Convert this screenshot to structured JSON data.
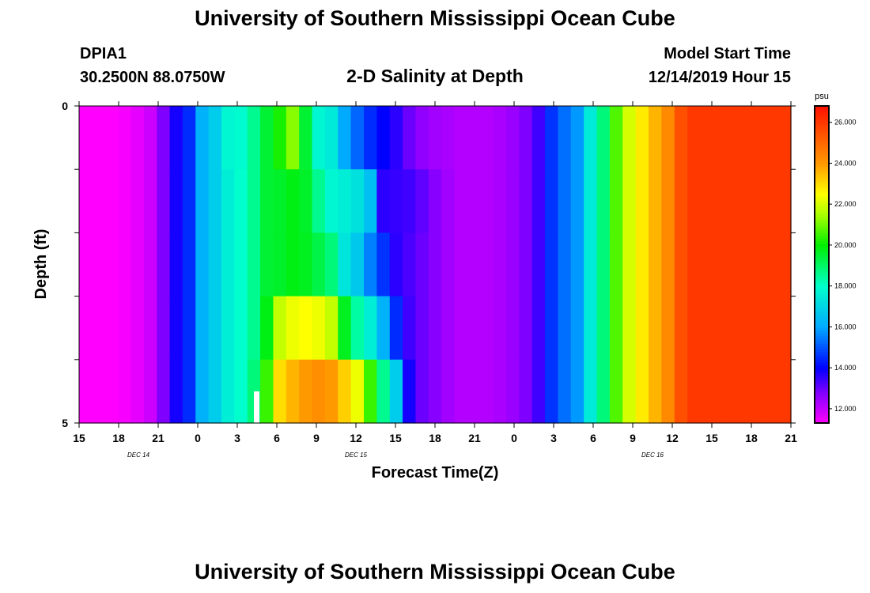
{
  "header": {
    "title": "University of Southern Mississippi Ocean Cube",
    "station": "DPIA1",
    "coords": "30.2500N 88.0750W",
    "subtitle": "2-D Salinity at Depth",
    "model_label": "Model Start Time",
    "model_time": "12/14/2019 Hour 15"
  },
  "footer": {
    "title": "University of Southern Mississippi Ocean Cube"
  },
  "chart_data": {
    "type": "heatmap",
    "title": "2-D Salinity at Depth",
    "xlabel": "Forecast Time(Z)",
    "ylabel": "Depth (ft)",
    "x_tick_labels": [
      "15",
      "18",
      "21",
      "0",
      "3",
      "6",
      "9",
      "12",
      "15",
      "18",
      "21",
      "0",
      "3",
      "6",
      "9",
      "12",
      "15",
      "18",
      "21"
    ],
    "date_labels": [
      {
        "label": "DEC 14",
        "tick": 1.5
      },
      {
        "label": "DEC 15",
        "tick": 7
      },
      {
        "label": "DEC 16",
        "tick": 14.5
      }
    ],
    "y_tick_labels": [
      "0",
      "5"
    ],
    "ylim": [
      0,
      5
    ],
    "x_hours_range": [
      0,
      54
    ],
    "colorbar": {
      "unit": "psu",
      "min": 11.3,
      "max": 26.8,
      "tick_labels": [
        "12.000",
        "14.000",
        "16.000",
        "18.000",
        "20.000",
        "22.000",
        "24.000",
        "26.000"
      ],
      "stops": [
        {
          "v": 11.3,
          "c": "#ff00ff"
        },
        {
          "v": 12.8,
          "c": "#8000ff"
        },
        {
          "v": 14.0,
          "c": "#0000ff"
        },
        {
          "v": 16.0,
          "c": "#00aaff"
        },
        {
          "v": 18.0,
          "c": "#00ffcc"
        },
        {
          "v": 20.0,
          "c": "#00ee00"
        },
        {
          "v": 21.5,
          "c": "#aaff00"
        },
        {
          "v": 22.5,
          "c": "#ffff00"
        },
        {
          "v": 24.0,
          "c": "#ff9900"
        },
        {
          "v": 26.8,
          "c": "#ff1100"
        }
      ]
    },
    "depths_ft": [
      0.5,
      1.5,
      2.5,
      3.5,
      4.5
    ],
    "hours": [
      0,
      1,
      2,
      3,
      4,
      5,
      6,
      7,
      8,
      9,
      10,
      11,
      12,
      13,
      14,
      15,
      16,
      17,
      18,
      19,
      20,
      21,
      22,
      23,
      24,
      25,
      26,
      27,
      28,
      29,
      30,
      31,
      32,
      33,
      34,
      35,
      36,
      37,
      38,
      39,
      40,
      41,
      42,
      43,
      44,
      45,
      46,
      47,
      48,
      49,
      50,
      51,
      52,
      53,
      54
    ],
    "salinity_psu": [
      [
        11.3,
        11.3,
        11.3,
        11.4,
        11.6,
        11.9,
        12.8,
        13.8,
        14.5,
        16.2,
        16.8,
        17.8,
        17.9,
        18.6,
        19.5,
        20.2,
        21.2,
        19.5,
        17.8,
        17.5,
        16.0,
        15.2,
        14.5,
        14.0,
        13.6,
        13.0,
        12.6,
        12.4,
        12.3,
        12.2,
        12.2,
        12.2,
        12.3,
        12.5,
        12.8,
        13.4,
        14.6,
        15.3,
        15.8,
        17.5,
        18.8,
        20.7,
        22.0,
        22.8,
        23.6,
        24.3,
        25.5,
        26.0,
        26.0,
        26.0,
        26.0,
        26.0,
        26.0,
        26.0,
        26.0
      ],
      [
        11.3,
        11.3,
        11.3,
        11.4,
        11.6,
        11.9,
        12.8,
        13.8,
        14.5,
        16.2,
        16.8,
        17.6,
        18.0,
        18.6,
        19.5,
        19.6,
        19.8,
        19.6,
        18.6,
        17.8,
        17.6,
        17.3,
        16.5,
        13.6,
        13.5,
        13.4,
        13.1,
        12.7,
        12.4,
        12.2,
        12.2,
        12.2,
        12.3,
        12.5,
        12.8,
        13.4,
        14.6,
        15.3,
        15.8,
        17.5,
        18.8,
        20.7,
        22.0,
        22.8,
        23.6,
        24.3,
        25.5,
        26.0,
        26.0,
        26.0,
        26.0,
        26.0,
        26.0,
        26.0,
        26.0
      ],
      [
        11.3,
        11.3,
        11.3,
        11.4,
        11.6,
        11.9,
        12.8,
        13.8,
        14.5,
        16.2,
        16.8,
        17.6,
        18.0,
        18.6,
        19.5,
        19.6,
        19.8,
        19.7,
        19.3,
        18.8,
        17.4,
        16.7,
        15.5,
        14.6,
        13.6,
        13.3,
        13.0,
        12.7,
        12.4,
        12.2,
        12.2,
        12.2,
        12.3,
        12.5,
        12.8,
        13.4,
        14.6,
        15.3,
        15.8,
        17.5,
        18.8,
        20.7,
        22.0,
        22.8,
        23.6,
        24.3,
        25.5,
        26.0,
        26.0,
        26.0,
        26.0,
        26.0,
        26.0,
        26.0,
        26.0
      ],
      [
        11.3,
        11.3,
        11.3,
        11.4,
        11.6,
        11.9,
        12.8,
        13.8,
        14.5,
        16.2,
        16.8,
        17.6,
        18.0,
        18.6,
        19.8,
        21.8,
        22.3,
        22.5,
        22.3,
        21.8,
        19.7,
        18.4,
        17.6,
        16.2,
        14.5,
        13.4,
        13.0,
        12.7,
        12.4,
        12.2,
        12.2,
        12.2,
        12.3,
        12.5,
        12.8,
        13.4,
        14.6,
        15.3,
        15.8,
        17.5,
        18.8,
        20.7,
        22.0,
        22.8,
        23.6,
        24.3,
        25.5,
        26.0,
        26.0,
        26.0,
        26.0,
        26.0,
        26.0,
        26.0,
        26.0
      ],
      [
        11.3,
        11.3,
        11.3,
        11.4,
        11.6,
        11.9,
        12.8,
        13.8,
        14.5,
        16.2,
        16.8,
        17.6,
        18.0,
        18.8,
        20.5,
        23.0,
        23.6,
        24.0,
        24.2,
        24.0,
        23.2,
        22.3,
        20.5,
        18.6,
        16.8,
        13.8,
        13.0,
        12.7,
        12.4,
        12.2,
        12.2,
        12.2,
        12.3,
        12.5,
        12.8,
        13.4,
        14.6,
        15.3,
        15.8,
        17.5,
        18.8,
        20.7,
        22.0,
        22.8,
        23.6,
        24.3,
        25.5,
        26.0,
        26.0,
        26.0,
        26.0,
        26.0,
        26.0,
        26.0,
        26.0
      ]
    ]
  }
}
